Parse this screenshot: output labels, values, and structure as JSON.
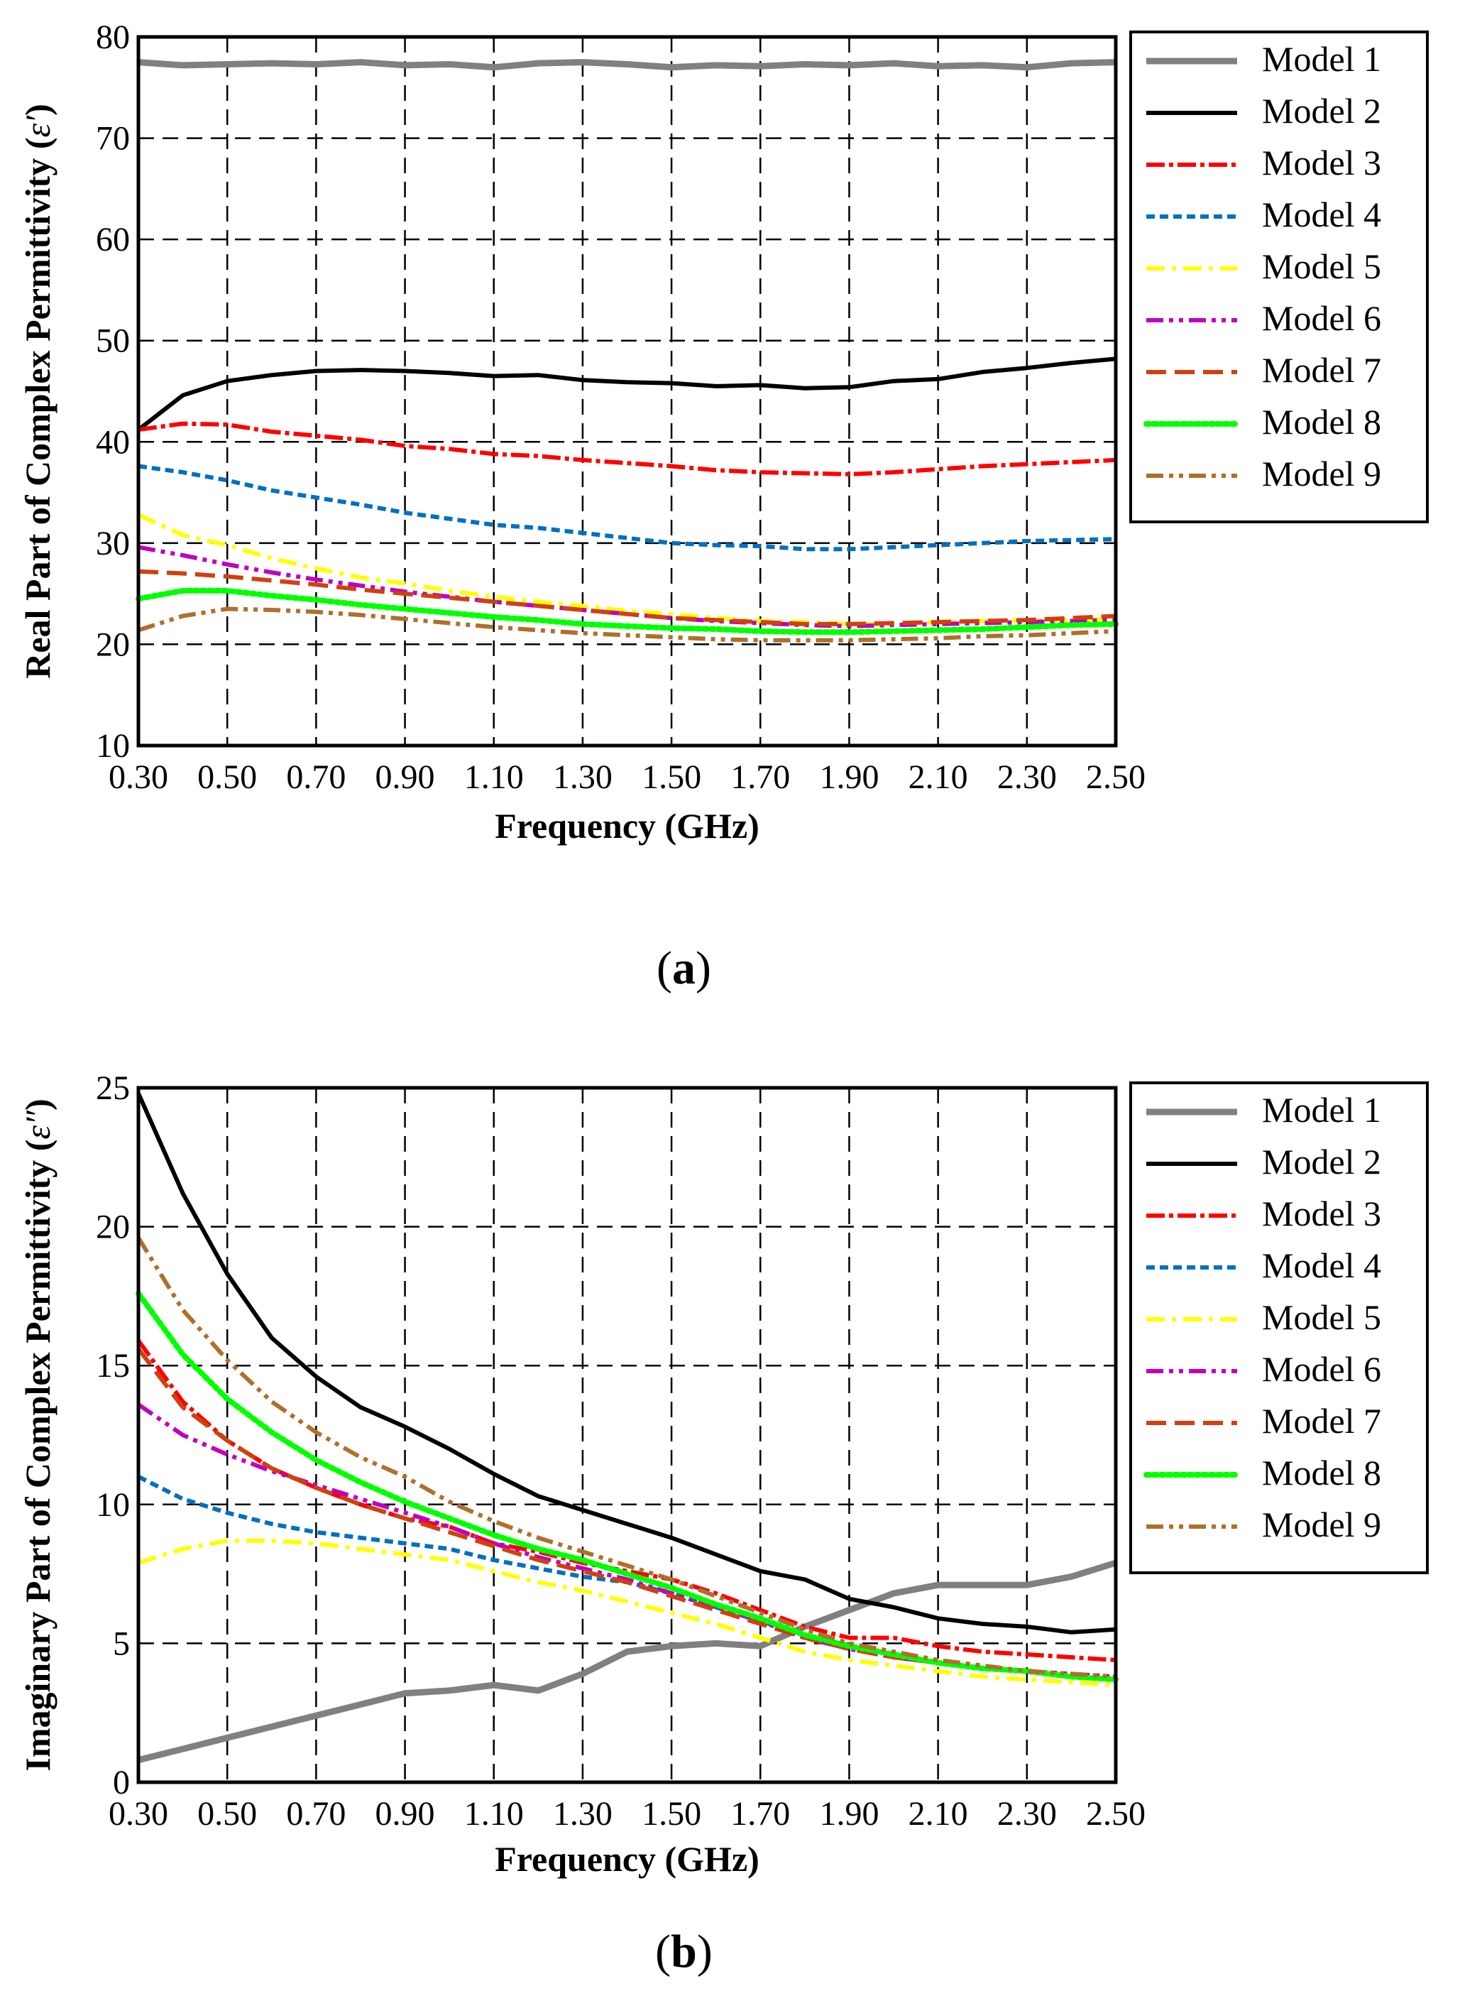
{
  "chart_data": [
    {
      "type": "line",
      "panel_label": "(a)",
      "xlabel": "Frequency (GHz)",
      "ylabel": "Real Part of Complex Permittivity (",
      "ylabel_symbol": "ε′",
      "ylabel_close": ")",
      "xlim": [
        0.3,
        2.5
      ],
      "ylim": [
        10,
        80
      ],
      "xticks": [
        "0.30",
        "0.50",
        "0.70",
        "0.90",
        "1.10",
        "1.30",
        "1.50",
        "1.70",
        "1.90",
        "2.10",
        "2.30",
        "2.50"
      ],
      "yticks": [
        "10",
        "20",
        "30",
        "40",
        "50",
        "60",
        "70",
        "80"
      ],
      "grid": true,
      "legend_position": "right",
      "x": [
        0.3,
        0.4,
        0.5,
        0.6,
        0.7,
        0.8,
        0.9,
        1.0,
        1.1,
        1.2,
        1.3,
        1.4,
        1.5,
        1.6,
        1.7,
        1.8,
        1.9,
        2.0,
        2.1,
        2.2,
        2.3,
        2.4,
        2.5
      ],
      "series": [
        {
          "name": "Model 1",
          "color": "#808080",
          "style": "star",
          "values": [
            77.5,
            77.2,
            77.3,
            77.4,
            77.3,
            77.5,
            77.2,
            77.3,
            77.0,
            77.4,
            77.5,
            77.3,
            77.0,
            77.2,
            77.1,
            77.3,
            77.2,
            77.4,
            77.1,
            77.2,
            77.0,
            77.4,
            77.5
          ]
        },
        {
          "name": "Model 2",
          "color": "#000000",
          "style": "solid",
          "values": [
            41.2,
            44.6,
            46.0,
            46.6,
            47.0,
            47.1,
            47.0,
            46.8,
            46.5,
            46.6,
            46.1,
            45.9,
            45.8,
            45.5,
            45.6,
            45.3,
            45.4,
            46.0,
            46.2,
            46.9,
            47.3,
            47.8,
            48.2
          ]
        },
        {
          "name": "Model 3",
          "color": "#ff0000",
          "style": "dashdot-red",
          "values": [
            41.2,
            41.8,
            41.7,
            41.0,
            40.6,
            40.2,
            39.6,
            39.3,
            38.8,
            38.6,
            38.2,
            37.9,
            37.6,
            37.2,
            37.0,
            36.9,
            36.8,
            37.0,
            37.3,
            37.6,
            37.8,
            38.0,
            38.2
          ]
        },
        {
          "name": "Model 4",
          "color": "#0070c0",
          "style": "short-dash",
          "values": [
            37.6,
            37.0,
            36.2,
            35.2,
            34.5,
            33.8,
            33.0,
            32.4,
            31.8,
            31.5,
            31.0,
            30.5,
            30.0,
            29.8,
            29.7,
            29.4,
            29.4,
            29.6,
            29.8,
            30.0,
            30.2,
            30.3,
            30.4
          ]
        },
        {
          "name": "Model 5",
          "color": "#ffff00",
          "style": "dashdot",
          "values": [
            32.8,
            30.8,
            29.8,
            28.5,
            27.5,
            26.6,
            26.0,
            25.3,
            24.7,
            24.2,
            23.8,
            23.3,
            23.0,
            22.6,
            22.3,
            22.2,
            22.0,
            22.0,
            22.2,
            22.3,
            22.4,
            22.4,
            22.5
          ]
        },
        {
          "name": "Model 6",
          "color": "#c000c0",
          "style": "dashdotdot",
          "values": [
            29.6,
            28.8,
            27.9,
            27.1,
            26.4,
            25.8,
            25.2,
            24.7,
            24.2,
            23.8,
            23.4,
            23.0,
            22.6,
            22.3,
            22.1,
            21.9,
            21.8,
            21.9,
            22.0,
            22.1,
            22.2,
            22.3,
            22.4
          ]
        },
        {
          "name": "Model 7",
          "color": "#d04010",
          "style": "long-dash",
          "values": [
            27.2,
            27.0,
            26.7,
            26.3,
            25.9,
            25.4,
            25.0,
            24.6,
            24.2,
            23.8,
            23.4,
            23.0,
            22.6,
            22.4,
            22.2,
            22.0,
            22.0,
            22.1,
            22.2,
            22.3,
            22.4,
            22.6,
            22.8
          ]
        },
        {
          "name": "Model 8",
          "color": "#00ff00",
          "style": "dotted",
          "values": [
            24.5,
            25.3,
            25.3,
            24.8,
            24.4,
            23.9,
            23.5,
            23.1,
            22.7,
            22.4,
            22.0,
            21.8,
            21.6,
            21.5,
            21.3,
            21.2,
            21.2,
            21.3,
            21.4,
            21.5,
            21.7,
            21.9,
            22.0
          ]
        },
        {
          "name": "Model 9",
          "color": "#b06f2a",
          "style": "dashdotdot",
          "values": [
            21.4,
            22.8,
            23.5,
            23.4,
            23.2,
            22.9,
            22.5,
            22.1,
            21.7,
            21.4,
            21.1,
            20.9,
            20.7,
            20.5,
            20.4,
            20.4,
            20.4,
            20.5,
            20.6,
            20.8,
            20.9,
            21.1,
            21.3
          ]
        }
      ]
    },
    {
      "type": "line",
      "panel_label": "(b)",
      "xlabel": "Frequency (GHz)",
      "ylabel": "Imaginary Part of Complex Permittivity (",
      "ylabel_symbol": "ε″",
      "ylabel_close": ")",
      "xlim": [
        0.3,
        2.5
      ],
      "ylim": [
        0,
        25
      ],
      "xticks": [
        "0.30",
        "0.50",
        "0.70",
        "0.90",
        "1.10",
        "1.30",
        "1.50",
        "1.70",
        "1.90",
        "2.10",
        "2.30",
        "2.50"
      ],
      "yticks": [
        "0",
        "5",
        "10",
        "15",
        "20",
        "25"
      ],
      "grid": true,
      "legend_position": "right",
      "x": [
        0.3,
        0.4,
        0.5,
        0.6,
        0.7,
        0.8,
        0.9,
        1.0,
        1.1,
        1.2,
        1.3,
        1.4,
        1.5,
        1.6,
        1.7,
        1.8,
        1.9,
        2.0,
        2.1,
        2.2,
        2.3,
        2.4,
        2.5
      ],
      "series": [
        {
          "name": "Model 1",
          "color": "#808080",
          "style": "star",
          "values": [
            0.8,
            1.2,
            1.6,
            2.0,
            2.4,
            2.8,
            3.2,
            3.3,
            3.5,
            3.3,
            3.9,
            4.7,
            4.9,
            5.0,
            4.9,
            5.6,
            6.2,
            6.8,
            7.1,
            7.1,
            7.1,
            7.4,
            7.9
          ]
        },
        {
          "name": "Model 2",
          "color": "#000000",
          "style": "solid",
          "values": [
            24.8,
            21.2,
            18.3,
            16.0,
            14.6,
            13.5,
            12.8,
            12.0,
            11.1,
            10.3,
            9.8,
            9.3,
            8.8,
            8.2,
            7.6,
            7.3,
            6.6,
            6.3,
            5.9,
            5.7,
            5.6,
            5.4,
            5.5
          ]
        },
        {
          "name": "Model 3",
          "color": "#ff0000",
          "style": "dashdot-red",
          "values": [
            15.9,
            13.7,
            12.3,
            11.3,
            10.6,
            10.0,
            9.5,
            9.2,
            8.6,
            8.3,
            7.9,
            7.6,
            7.3,
            6.8,
            6.2,
            5.6,
            5.2,
            5.2,
            4.9,
            4.7,
            4.6,
            4.5,
            4.4
          ]
        },
        {
          "name": "Model 4",
          "color": "#0070c0",
          "style": "short-dash",
          "values": [
            11.0,
            10.2,
            9.7,
            9.3,
            9.0,
            8.8,
            8.6,
            8.4,
            8.0,
            7.7,
            7.4,
            7.2,
            6.8,
            6.3,
            5.8,
            5.3,
            4.9,
            4.6,
            4.3,
            4.1,
            4.0,
            3.8,
            3.7
          ]
        },
        {
          "name": "Model 5",
          "color": "#ffff00",
          "style": "dashdot",
          "values": [
            7.9,
            8.4,
            8.7,
            8.7,
            8.6,
            8.4,
            8.2,
            8.0,
            7.6,
            7.2,
            6.9,
            6.5,
            6.1,
            5.7,
            5.2,
            4.7,
            4.4,
            4.2,
            4.0,
            3.8,
            3.7,
            3.6,
            3.5
          ]
        },
        {
          "name": "Model 6",
          "color": "#c000c0",
          "style": "dashdotdot",
          "values": [
            13.6,
            12.5,
            11.8,
            11.2,
            10.7,
            10.2,
            9.7,
            9.2,
            8.6,
            8.1,
            7.7,
            7.3,
            6.8,
            6.3,
            5.8,
            5.2,
            4.8,
            4.5,
            4.3,
            4.1,
            4.0,
            3.9,
            3.8
          ]
        },
        {
          "name": "Model 7",
          "color": "#d04010",
          "style": "long-dash",
          "values": [
            15.6,
            13.5,
            12.3,
            11.3,
            10.6,
            10.0,
            9.5,
            9.0,
            8.5,
            8.0,
            7.6,
            7.2,
            6.7,
            6.2,
            5.7,
            5.2,
            4.8,
            4.5,
            4.3,
            4.1,
            4.0,
            3.8,
            3.7
          ]
        },
        {
          "name": "Model 8",
          "color": "#00ff00",
          "style": "dotted",
          "values": [
            17.6,
            15.4,
            13.8,
            12.6,
            11.6,
            10.8,
            10.1,
            9.5,
            8.9,
            8.4,
            8.0,
            7.5,
            7.0,
            6.4,
            5.9,
            5.3,
            4.9,
            4.6,
            4.3,
            4.1,
            4.0,
            3.8,
            3.7
          ]
        },
        {
          "name": "Model 9",
          "color": "#b06f2a",
          "style": "dashdotdot",
          "values": [
            19.6,
            17.0,
            15.2,
            13.7,
            12.6,
            11.7,
            11.0,
            10.1,
            9.4,
            8.8,
            8.3,
            7.8,
            7.3,
            6.7,
            6.1,
            5.5,
            5.0,
            4.7,
            4.4,
            4.2,
            4.0,
            3.9,
            3.8
          ]
        }
      ]
    }
  ]
}
